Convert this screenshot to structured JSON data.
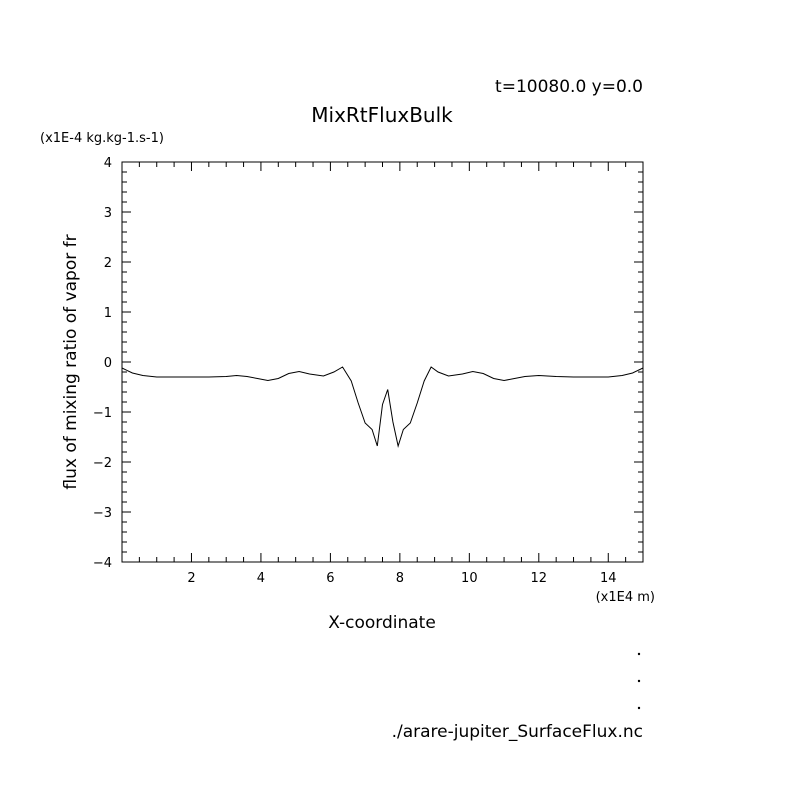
{
  "colors": {
    "background": "#ffffff",
    "line": "#000000"
  },
  "chart_data": {
    "type": "line",
    "title": "MixRtFluxBulk",
    "subtitle": "t=10080.0 y=0.0",
    "ylabel": "flux of mixing ratio of vapor fr",
    "yunit": "(x1E-4 kg.kg-1.s-1)",
    "xlabel": "X-coordinate",
    "xunit": "(x1E4 m)",
    "footer": "./arare-jupiter_SurfaceFlux.nc",
    "xlim": [
      0,
      15
    ],
    "ylim": [
      -4,
      4
    ],
    "xticks_major": [
      2,
      4,
      6,
      8,
      10,
      12,
      14
    ],
    "xtick_labels": [
      "2",
      "4",
      "6",
      "8",
      "10",
      "12",
      "14"
    ],
    "yticks_major": [
      -4,
      -3,
      -2,
      -1,
      0,
      1,
      2,
      3,
      4
    ],
    "ytick_labels": [
      "−4",
      "−3",
      "−2",
      "−1",
      "0",
      "1",
      "2",
      "3",
      "4"
    ],
    "grid": false,
    "series": [
      {
        "x": [
          0.0,
          0.3,
          0.6,
          1.0,
          1.5,
          2.0,
          2.5,
          3.0,
          3.3,
          3.6,
          3.9,
          4.2,
          4.5,
          4.8,
          5.1,
          5.4,
          5.8,
          6.1,
          6.35,
          6.6,
          6.8,
          7.0,
          7.2,
          7.35,
          7.5,
          7.65,
          7.8,
          7.95,
          8.1,
          8.3,
          8.5,
          8.7,
          8.9,
          9.1,
          9.4,
          9.8,
          10.1,
          10.4,
          10.7,
          11.0,
          11.3,
          11.6,
          12.0,
          12.5,
          13.0,
          13.5,
          14.0,
          14.4,
          14.7,
          15.0
        ],
        "y": [
          -0.12,
          -0.22,
          -0.27,
          -0.3,
          -0.3,
          -0.3,
          -0.3,
          -0.29,
          -0.27,
          -0.29,
          -0.33,
          -0.37,
          -0.33,
          -0.23,
          -0.19,
          -0.24,
          -0.28,
          -0.2,
          -0.1,
          -0.38,
          -0.82,
          -1.22,
          -1.35,
          -1.68,
          -0.85,
          -0.55,
          -1.2,
          -1.68,
          -1.35,
          -1.22,
          -0.82,
          -0.38,
          -0.1,
          -0.2,
          -0.28,
          -0.24,
          -0.19,
          -0.23,
          -0.33,
          -0.37,
          -0.33,
          -0.29,
          -0.27,
          -0.29,
          -0.3,
          -0.3,
          -0.3,
          -0.27,
          -0.22,
          -0.12
        ]
      }
    ]
  }
}
